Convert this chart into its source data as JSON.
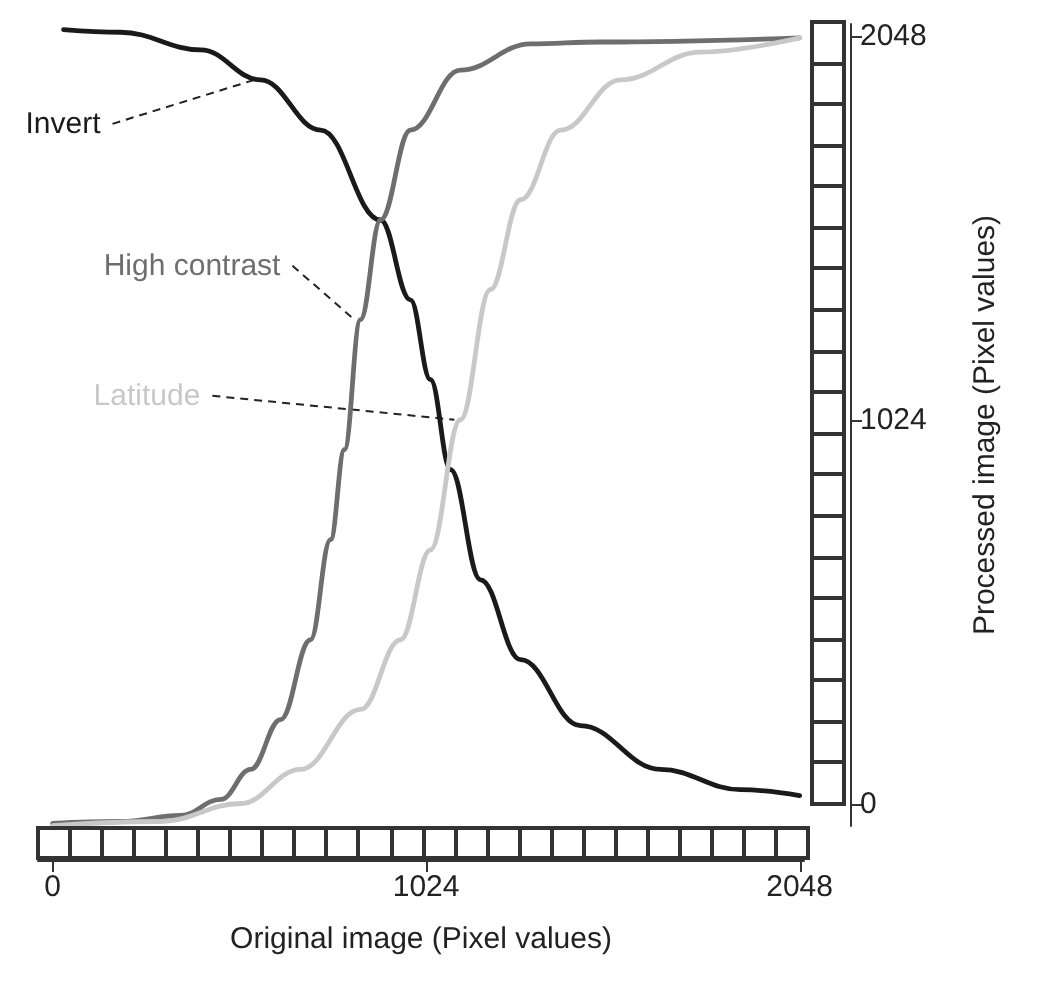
{
  "chart_data": {
    "type": "line",
    "xlabel": "Original image (Pixel values)",
    "ylabel": "Processed image (Pixel values)",
    "xlim": [
      -40,
      2060
    ],
    "ylim": [
      -60,
      2080
    ],
    "xticks": [
      0,
      1024,
      2048
    ],
    "yticks": [
      0,
      1024,
      2048
    ],
    "grid": false,
    "legend": false,
    "marker": "none",
    "line_style": "solid",
    "series": [
      {
        "name": "Invert",
        "color": "#1a1a1a",
        "x": [
          30,
          186,
          406,
          570,
          735,
          899,
          981,
          1036,
          1091,
          1173,
          1283,
          1447,
          1667,
          1886,
          2048
        ],
        "values": [
          2065,
          2058,
          2011,
          1931,
          1797,
          1557,
          1344,
          1131,
          891,
          597,
          384,
          208,
          91,
          37,
          21
        ]
      },
      {
        "name": "High contrast",
        "color": "#6e6e6e",
        "x": [
          0,
          186,
          351,
          461,
          543,
          625,
          707,
          762,
          800,
          844,
          899,
          981,
          1118,
          1310,
          1502,
          2048
        ],
        "values": [
          -53,
          -48,
          -32,
          11,
          91,
          224,
          437,
          704,
          944,
          1291,
          1557,
          1797,
          1957,
          2027,
          2032,
          2043
        ]
      },
      {
        "name": "Latitude",
        "color": "#c8c8c8",
        "x": [
          0,
          296,
          515,
          680,
          844,
          954,
          1036,
          1118,
          1200,
          1283,
          1393,
          1557,
          1776,
          2048
        ],
        "values": [
          -59,
          -48,
          0,
          91,
          251,
          437,
          677,
          1024,
          1371,
          1611,
          1797,
          1931,
          2005,
          2043
        ]
      }
    ]
  }
}
